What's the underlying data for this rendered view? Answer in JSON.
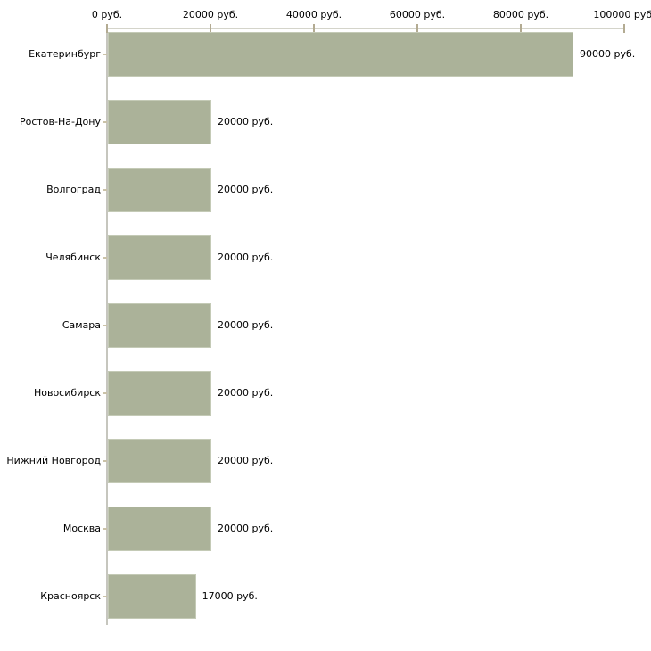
{
  "chart_data": {
    "type": "bar",
    "orientation": "horizontal",
    "title": "",
    "xlabel": "",
    "ylabel": "",
    "unit": "руб.",
    "categories": [
      "Екатеринбург",
      "Ростов-На-Дону",
      "Волгоград",
      "Челябинск",
      "Самара",
      "Новосибирск",
      "Нижний Новгород",
      "Москва",
      "Красноярск"
    ],
    "values": [
      90000,
      20000,
      20000,
      20000,
      20000,
      20000,
      20000,
      20000,
      17000
    ],
    "value_labels": [
      "90000 руб.",
      "20000 руб.",
      "20000 руб.",
      "20000 руб.",
      "20000 руб.",
      "20000 руб.",
      "20000 руб.",
      "20000 руб.",
      "17000 руб."
    ],
    "x_axis": {
      "position": "top",
      "min": 0,
      "max": 100000,
      "tick_values": [
        0,
        20000,
        40000,
        60000,
        80000,
        100000
      ],
      "tick_labels": [
        "0 руб.",
        "20000 руб.",
        "40000 руб.",
        "60000 руб.",
        "80000 руб.",
        "100000 руб."
      ]
    },
    "grid": false,
    "legend": false,
    "colors": {
      "bar_fill": "#abb299",
      "bar_edge": "#c4cab6",
      "x_axis_line": "#d4d4ca",
      "y_axis_line": "#c6c6be",
      "x_tick_mark": "#b3ab92",
      "y_tick_mark": "#cac2a8",
      "text": "#000000",
      "background": "#ffffff"
    }
  }
}
